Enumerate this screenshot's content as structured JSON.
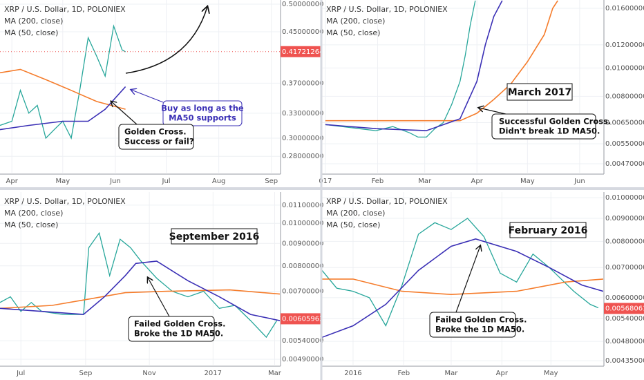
{
  "chart_data": [
    {
      "type": "line",
      "title": "XRP / U.S. Dollar, 1D, POLONIEX",
      "log_scale": true,
      "grid": true,
      "price_line": true,
      "xlim": [
        -7,
        158
      ],
      "xticks": [
        {
          "value": 0,
          "label": "Apr"
        },
        {
          "value": 30,
          "label": "May"
        },
        {
          "value": 61,
          "label": "Jun"
        },
        {
          "value": 91,
          "label": "Jul"
        },
        {
          "value": 122,
          "label": "Aug"
        },
        {
          "value": 153,
          "label": "Sep"
        }
      ],
      "ylim": [
        0.263,
        0.508
      ],
      "yticks": [
        {
          "value": 0.5,
          "label": "0.50000000"
        },
        {
          "value": 0.45,
          "label": "0.45000000"
        },
        {
          "value": 0.37,
          "label": "0.37000000"
        },
        {
          "value": 0.33,
          "label": "0.33000000"
        },
        {
          "value": 0.3,
          "label": "0.30000000"
        },
        {
          "value": 0.28,
          "label": "0.28000000"
        }
      ],
      "last_price": 0.41721264,
      "price": {
        "color": "#26a69a",
        "x": [
          -7,
          0,
          5,
          10,
          15,
          20,
          25,
          30,
          35,
          40,
          45,
          50,
          55,
          60,
          65,
          67
        ],
        "values": [
          0.315,
          0.32,
          0.36,
          0.33,
          0.34,
          0.3,
          0.31,
          0.32,
          0.3,
          0.36,
          0.44,
          0.41,
          0.38,
          0.46,
          0.42,
          0.417
        ]
      },
      "series": [
        {
          "name": "MA (200, close)",
          "color": "#f57c2b",
          "x": [
            -7,
            5,
            20,
            35,
            50,
            67
          ],
          "values": [
            0.385,
            0.39,
            0.375,
            0.36,
            0.345,
            0.335
          ]
        },
        {
          "name": "MA (50, close)",
          "color": "#3a2fb5",
          "x": [
            -7,
            10,
            30,
            45,
            55,
            67
          ],
          "values": [
            0.31,
            0.315,
            0.32,
            0.32,
            0.335,
            0.365
          ]
        }
      ],
      "annotations": [
        {
          "lines": [
            "Buy as long as the",
            "MA50 supports"
          ]
        },
        {
          "lines": [
            "Golden Cross.",
            "Success or fail?"
          ]
        }
      ]
    },
    {
      "type": "line",
      "title": "XRP / U.S. Dollar, 1D, POLONIEX",
      "log_scale": true,
      "grid": true,
      "xlim": [
        -2,
        165
      ],
      "xticks": [
        {
          "value": 0,
          "label": "017"
        },
        {
          "value": 31,
          "label": "Feb"
        },
        {
          "value": 59,
          "label": "Mar"
        },
        {
          "value": 90,
          "label": "Apr"
        },
        {
          "value": 120,
          "label": "May"
        },
        {
          "value": 151,
          "label": "Jun"
        }
      ],
      "ylim": [
        0.00438,
        0.01708
      ],
      "yticks": [
        {
          "value": 0.016,
          "label": "0.01600000"
        },
        {
          "value": 0.012,
          "label": "0.01200000"
        },
        {
          "value": 0.01,
          "label": "0.01000000"
        },
        {
          "value": 0.008,
          "label": "0.00800000"
        },
        {
          "value": 0.0065,
          "label": "0.00650000"
        },
        {
          "value": 0.0055,
          "label": "0.00550000"
        },
        {
          "value": 0.0047,
          "label": "0.00470000"
        }
      ],
      "price": {
        "color": "#26a69a",
        "x": [
          0,
          10,
          20,
          30,
          40,
          50,
          55,
          60,
          65,
          70,
          75,
          80,
          83,
          86,
          89
        ],
        "values": [
          0.0064,
          0.0063,
          0.0062,
          0.0061,
          0.0063,
          0.006,
          0.0058,
          0.0058,
          0.0062,
          0.0065,
          0.0075,
          0.009,
          0.011,
          0.014,
          0.017
        ]
      },
      "series": [
        {
          "name": "MA (200, close)",
          "color": "#f57c2b",
          "x": [
            0,
            80,
            90,
            100,
            110,
            120,
            130,
            135,
            138
          ],
          "values": [
            0.0066,
            0.0066,
            0.007,
            0.0078,
            0.0088,
            0.0105,
            0.013,
            0.016,
            0.017
          ]
        },
        {
          "name": "MA (50, close)",
          "color": "#3a2fb5",
          "x": [
            0,
            30,
            60,
            80,
            90,
            95,
            100,
            105
          ],
          "values": [
            0.0064,
            0.0062,
            0.0061,
            0.0067,
            0.009,
            0.012,
            0.015,
            0.017
          ]
        }
      ],
      "period": "March 2017",
      "annotations": [
        {
          "lines": [
            "Successful Golden Cross.",
            "Didn't break 1D MA50."
          ]
        }
      ]
    },
    {
      "type": "line",
      "title": "XRP / U.S. Dollar, 1D, POLONIEX",
      "log_scale": true,
      "grid": true,
      "xlim": [
        -20,
        248
      ],
      "xticks": [
        {
          "value": 0,
          "label": "Jul"
        },
        {
          "value": 62,
          "label": "Sep"
        },
        {
          "value": 123,
          "label": "Nov"
        },
        {
          "value": 184,
          "label": "2017"
        },
        {
          "value": 243,
          "label": "Mar"
        }
      ],
      "ylim": [
        0.00476,
        0.01178
      ],
      "yticks": [
        {
          "value": 0.011,
          "label": "0.01100000"
        },
        {
          "value": 0.01,
          "label": "0.01000000"
        },
        {
          "value": 0.009,
          "label": "0.00900000"
        },
        {
          "value": 0.008,
          "label": "0.00800000"
        },
        {
          "value": 0.007,
          "label": "0.00700000"
        },
        {
          "value": 0.0054,
          "label": "0.00540000"
        },
        {
          "value": 0.0049,
          "label": "0.00490000"
        }
      ],
      "last_price": 0.00605962,
      "price": {
        "color": "#26a69a",
        "x": [
          -20,
          -10,
          0,
          10,
          20,
          40,
          60,
          65,
          75,
          85,
          95,
          105,
          115,
          130,
          145,
          160,
          175,
          190,
          205,
          220,
          235,
          245
        ],
        "values": [
          0.0066,
          0.0068,
          0.0063,
          0.0066,
          0.0063,
          0.0062,
          0.0062,
          0.0088,
          0.0095,
          0.0076,
          0.0092,
          0.0088,
          0.0082,
          0.0075,
          0.007,
          0.0068,
          0.007,
          0.0064,
          0.0065,
          0.006,
          0.0055,
          0.006
        ]
      },
      "series": [
        {
          "name": "MA (200, close)",
          "color": "#f57c2b",
          "x": [
            -20,
            30,
            62,
            100,
            140,
            200,
            248
          ],
          "values": [
            0.0064,
            0.0065,
            0.0067,
            0.00695,
            0.007,
            0.00705,
            0.0069
          ]
        },
        {
          "name": "MA (50, close)",
          "color": "#3a2fb5",
          "x": [
            -20,
            20,
            60,
            80,
            100,
            110,
            130,
            160,
            190,
            220,
            248
          ],
          "values": [
            0.0064,
            0.0063,
            0.0062,
            0.0068,
            0.0076,
            0.0081,
            0.0082,
            0.0074,
            0.0068,
            0.0062,
            0.006
          ]
        }
      ],
      "period": "September 2016",
      "annotations": [
        {
          "lines": [
            "Failed Golden Cross.",
            "Broke the 1D MA50."
          ]
        }
      ]
    },
    {
      "type": "line",
      "title": "XRP / U.S. Dollar, 1D, POLONIEX",
      "log_scale": true,
      "grid": true,
      "xlim": [
        -19,
        153
      ],
      "xticks": [
        {
          "value": 0,
          "label": "2016"
        },
        {
          "value": 31,
          "label": "Feb"
        },
        {
          "value": 60,
          "label": "Mar"
        },
        {
          "value": 91,
          "label": "Apr"
        },
        {
          "value": 121,
          "label": "May"
        }
      ],
      "ylim": [
        0.00426,
        0.01029
      ],
      "yticks": [
        {
          "value": 0.01,
          "label": "0.01000000"
        },
        {
          "value": 0.009,
          "label": "0.00900000"
        },
        {
          "value": 0.008,
          "label": "0.00800000"
        },
        {
          "value": 0.007,
          "label": "0.00700000"
        },
        {
          "value": 0.006,
          "label": "0.00600000"
        },
        {
          "value": 0.0054,
          "label": "0.00540000"
        },
        {
          "value": 0.0048,
          "label": "0.00480000"
        },
        {
          "value": 0.00435,
          "label": "0.00435000"
        }
      ],
      "last_price": 0.00568061,
      "price": {
        "color": "#26a69a",
        "x": [
          -19,
          -10,
          0,
          10,
          20,
          30,
          40,
          50,
          60,
          70,
          80,
          90,
          100,
          110,
          120,
          135,
          145,
          150
        ],
        "values": [
          0.0069,
          0.0063,
          0.0062,
          0.006,
          0.0052,
          0.0064,
          0.0083,
          0.0088,
          0.0085,
          0.009,
          0.0082,
          0.0068,
          0.0065,
          0.0075,
          0.007,
          0.0062,
          0.0058,
          0.0057
        ]
      },
      "series": [
        {
          "name": "MA (200, close)",
          "color": "#f57c2b",
          "x": [
            -19,
            0,
            30,
            60,
            100,
            130,
            153
          ],
          "values": [
            0.0066,
            0.0066,
            0.0062,
            0.0061,
            0.0062,
            0.0065,
            0.0066
          ]
        },
        {
          "name": "MA (50, close)",
          "color": "#3a2fb5",
          "x": [
            -19,
            0,
            20,
            40,
            60,
            75,
            100,
            120,
            140,
            153
          ],
          "values": [
            0.0049,
            0.0052,
            0.0058,
            0.0069,
            0.0078,
            0.0081,
            0.0076,
            0.007,
            0.0064,
            0.0062
          ]
        }
      ],
      "period": "February 2016",
      "annotations": [
        {
          "lines": [
            "Failed Golden Cross.",
            "Broke the 1D MA50."
          ]
        }
      ]
    }
  ]
}
